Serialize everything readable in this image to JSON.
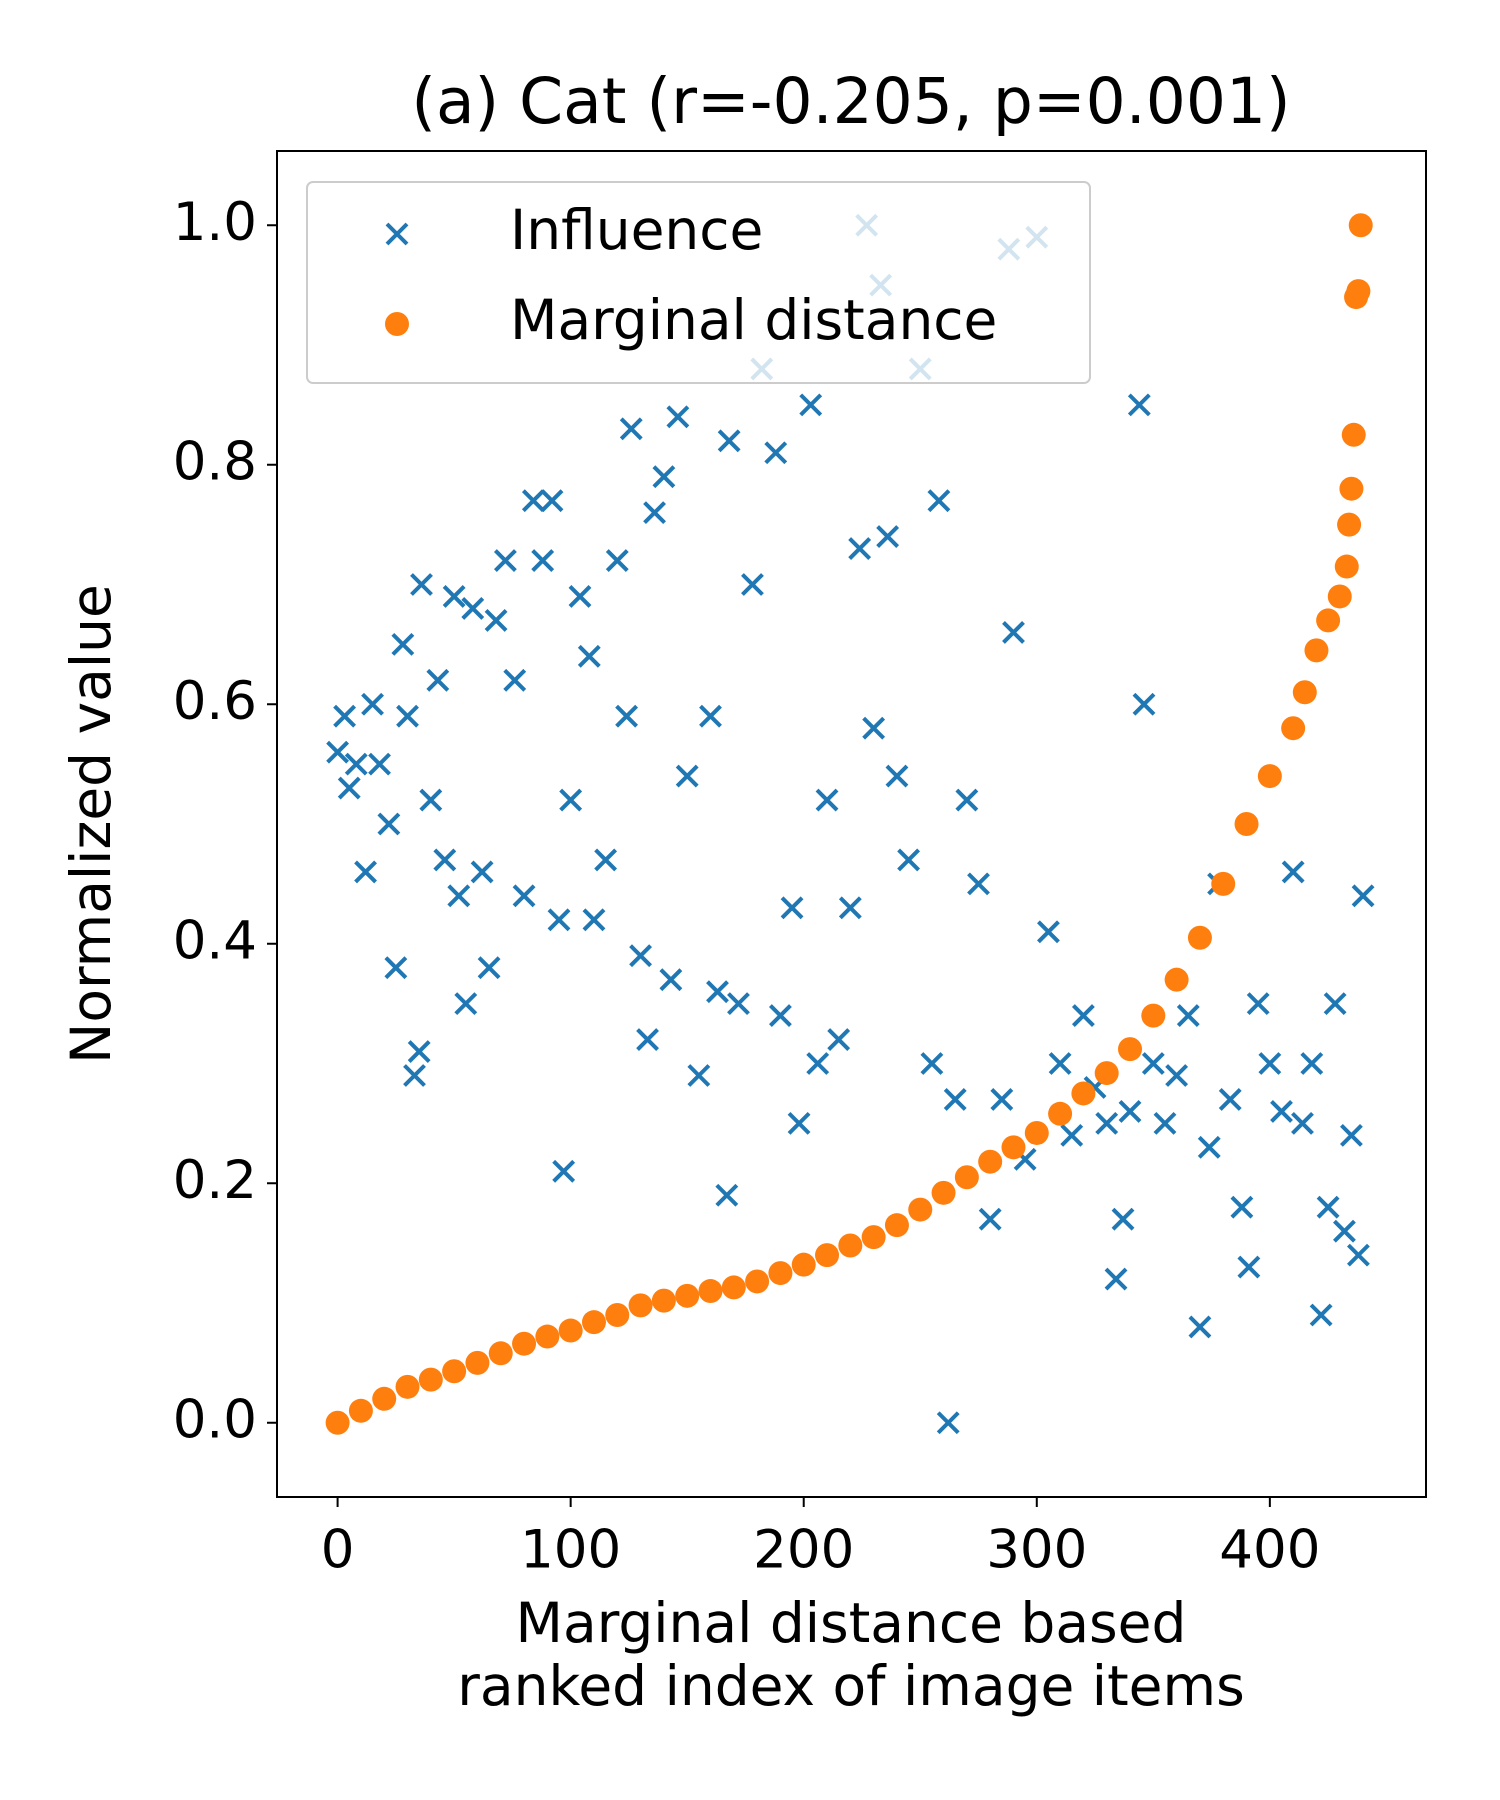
{
  "chart_data": {
    "type": "scatter",
    "title": "(a) Cat (r=-0.205, p=0.001)",
    "xlabel": [
      "Marginal distance based",
      "ranked index of image items"
    ],
    "ylabel": "Normalized value",
    "xlim": [
      -26,
      467
    ],
    "ylim": [
      -0.062,
      1.062
    ],
    "xticks": [
      0,
      100,
      200,
      300,
      400
    ],
    "yticks": [
      {
        "value": 0,
        "label": "0.0"
      },
      0.2,
      0.4,
      0.6,
      0.8,
      {
        "value": 1,
        "label": "1.0"
      }
    ],
    "legend": "upper left",
    "series": [
      {
        "name": "Influence",
        "color": "#1f77b4",
        "marker": "x",
        "x": [
          0,
          3,
          5,
          8,
          12,
          15,
          18,
          22,
          25,
          28,
          30,
          33,
          35,
          36,
          40,
          43,
          46,
          50,
          52,
          55,
          58,
          62,
          65,
          68,
          72,
          76,
          80,
          84,
          88,
          92,
          95,
          97,
          100,
          104,
          108,
          110,
          115,
          120,
          124,
          126,
          130,
          133,
          136,
          140,
          143,
          146,
          150,
          155,
          160,
          163,
          167,
          168,
          172,
          178,
          182,
          188,
          190,
          195,
          198,
          203,
          206,
          210,
          215,
          220,
          224,
          227,
          230,
          233,
          236,
          240,
          245,
          250,
          255,
          258,
          262,
          265,
          270,
          275,
          280,
          285,
          288,
          290,
          295,
          300,
          305,
          310,
          315,
          320,
          325,
          330,
          334,
          337,
          340,
          344,
          346,
          350,
          355,
          360,
          365,
          370,
          374,
          378,
          383,
          388,
          391,
          395,
          400,
          405,
          410,
          414,
          418,
          422,
          425,
          428,
          432,
          435,
          438,
          440
        ],
        "values": [
          0.56,
          0.59,
          0.53,
          0.55,
          0.46,
          0.6,
          0.55,
          0.5,
          0.38,
          0.65,
          0.59,
          0.29,
          0.31,
          0.7,
          0.52,
          0.62,
          0.47,
          0.69,
          0.44,
          0.35,
          0.68,
          0.46,
          0.38,
          0.67,
          0.72,
          0.62,
          0.44,
          0.77,
          0.72,
          0.77,
          0.42,
          0.21,
          0.52,
          0.69,
          0.64,
          0.42,
          0.47,
          0.72,
          0.59,
          0.83,
          0.39,
          0.32,
          0.76,
          0.79,
          0.37,
          0.84,
          0.54,
          0.29,
          0.59,
          0.36,
          0.19,
          0.82,
          0.35,
          0.7,
          0.88,
          0.81,
          0.34,
          0.43,
          0.25,
          0.85,
          0.3,
          0.52,
          0.32,
          0.43,
          0.73,
          1.0,
          0.58,
          0.95,
          0.74,
          0.54,
          0.47,
          0.88,
          0.3,
          0.77,
          0.0,
          0.27,
          0.52,
          0.45,
          0.17,
          0.27,
          0.98,
          0.66,
          0.22,
          0.99,
          0.41,
          0.3,
          0.24,
          0.34,
          0.28,
          0.25,
          0.12,
          0.17,
          0.26,
          0.85,
          0.6,
          0.3,
          0.25,
          0.29,
          0.34,
          0.08,
          0.23,
          0.45,
          0.27,
          0.18,
          0.13,
          0.35,
          0.3,
          0.26,
          0.46,
          0.25,
          0.3,
          0.09,
          0.18,
          0.35,
          0.16,
          0.24,
          0.14,
          0.44
        ]
      },
      {
        "name": "Marginal distance",
        "color": "#ff7f0e",
        "marker": "o",
        "x": [
          0,
          10,
          20,
          30,
          40,
          50,
          60,
          70,
          80,
          90,
          100,
          110,
          120,
          130,
          140,
          150,
          160,
          170,
          180,
          190,
          200,
          210,
          220,
          230,
          240,
          250,
          260,
          270,
          280,
          290,
          300,
          310,
          320,
          330,
          340,
          350,
          360,
          370,
          380,
          390,
          400,
          410,
          415,
          420,
          425,
          430,
          433,
          434,
          435,
          436,
          437,
          438,
          439
        ],
        "values": [
          0,
          0.01,
          0.02,
          0.03,
          0.036,
          0.043,
          0.05,
          0.058,
          0.066,
          0.072,
          0.077,
          0.084,
          0.09,
          0.098,
          0.102,
          0.106,
          0.11,
          0.113,
          0.118,
          0.125,
          0.132,
          0.14,
          0.148,
          0.155,
          0.165,
          0.178,
          0.192,
          0.205,
          0.218,
          0.23,
          0.242,
          0.258,
          0.275,
          0.292,
          0.312,
          0.34,
          0.37,
          0.405,
          0.45,
          0.5,
          0.54,
          0.58,
          0.61,
          0.645,
          0.67,
          0.69,
          0.715,
          0.75,
          0.78,
          0.825,
          0.94,
          0.945,
          1.0
        ]
      }
    ]
  }
}
